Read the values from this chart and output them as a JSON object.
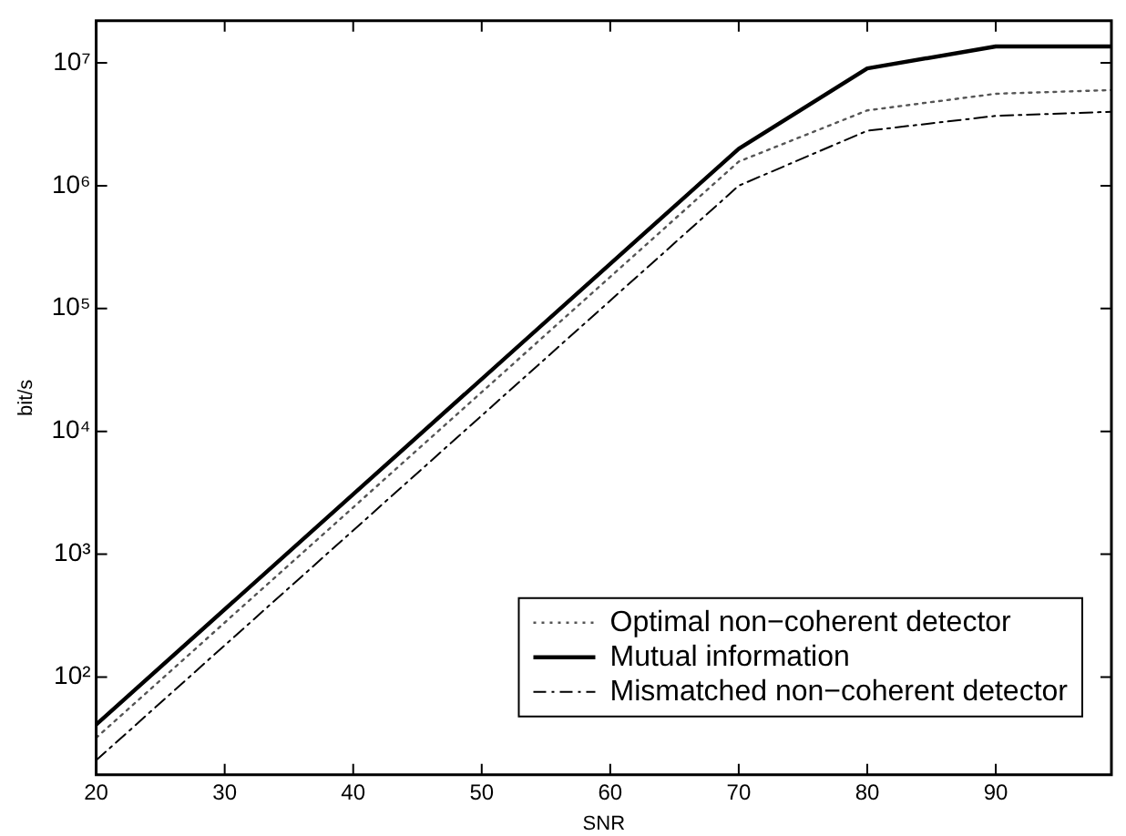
{
  "chart_data": {
    "type": "line",
    "xlabel": "SNR",
    "ylabel": "bit/s",
    "x": [
      20,
      70,
      80,
      90,
      99
    ],
    "series": [
      {
        "name": "Optimal non−coherent detector",
        "color": "#555555",
        "line_style": "dotted",
        "values": [
          32,
          1570000,
          4100000,
          5600000,
          6000000
        ]
      },
      {
        "name": "Mutual information",
        "color": "#000000",
        "line_style": "solid",
        "values": [
          41,
          2000000,
          9000000,
          13600000,
          13600000
        ]
      },
      {
        "name": "Mismatched non−coherent detector",
        "color": "#000000",
        "line_style": "dashed",
        "values": [
          21,
          1000000,
          2800000,
          3700000,
          4000000
        ]
      }
    ],
    "xlim": [
      20,
      99
    ],
    "xticks": [
      20,
      30,
      40,
      50,
      60,
      70,
      80,
      90
    ],
    "log": "y",
    "ylim": [
      16,
      22000000
    ],
    "yticks": [
      {
        "value": 100,
        "label": "10²"
      },
      {
        "value": 1000,
        "label": "10³"
      },
      {
        "value": 10000,
        "label": "10⁴"
      },
      {
        "value": 100000,
        "label": "10⁵"
      },
      {
        "value": 1000000,
        "label": "10⁶"
      },
      {
        "value": 10000000,
        "label": "10⁷"
      }
    ],
    "grid": false,
    "legend": "bottom right",
    "marker": "none"
  }
}
